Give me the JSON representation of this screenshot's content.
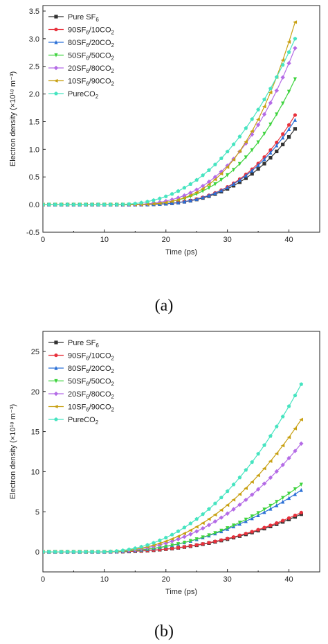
{
  "chart_data": [
    {
      "type": "line",
      "panel_label": "(a)",
      "xlabel": "Time (ps)",
      "ylabel": "Electron density (×10¹⁸ m⁻³)",
      "xlim": [
        0,
        45
      ],
      "ylim": [
        -0.5,
        3.6
      ],
      "xticks": [
        0,
        10,
        20,
        30,
        40
      ],
      "yticks": [
        -0.5,
        0.0,
        0.5,
        1.0,
        1.5,
        2.0,
        2.5,
        3.0,
        3.5
      ],
      "ytick_labels": [
        "-0.5",
        "0.0",
        "0.5",
        "1.0",
        "1.5",
        "2.0",
        "2.5",
        "3.0",
        "3.5"
      ],
      "xtick_labels": [
        "0",
        "10",
        "20",
        "30",
        "40"
      ],
      "legend_position": "top-left",
      "grid": false,
      "x": [
        0,
        1,
        2,
        3,
        4,
        5,
        6,
        7,
        8,
        9,
        10,
        11,
        12,
        13,
        14,
        15,
        16,
        17,
        18,
        19,
        20,
        21,
        22,
        23,
        24,
        25,
        26,
        27,
        28,
        29,
        30,
        31,
        32,
        33,
        34,
        35,
        36,
        37,
        38,
        39,
        40,
        41
      ],
      "series": [
        {
          "name": "Pure SF₆",
          "color": "#333333",
          "marker": "square",
          "end": 1.37,
          "start": 14,
          "p": 3.0
        },
        {
          "name": "90SF₆/10CO₂",
          "color": "#e8313c",
          "marker": "circle",
          "end": 1.62,
          "start": 14,
          "p": 3.1
        },
        {
          "name": "80SF₆/20CO₂",
          "color": "#2a6fd6",
          "marker": "triangle",
          "end": 1.53,
          "start": 14,
          "p": 3.05
        },
        {
          "name": "50SF₆/50CO₂",
          "color": "#3ed33e",
          "marker": "triangle-down",
          "end": 2.27,
          "start": 13,
          "p": 2.9
        },
        {
          "name": "20SF₆/80CO₂",
          "color": "#b46be6",
          "marker": "diamond",
          "end": 2.83,
          "start": 12.5,
          "p": 2.85
        },
        {
          "name": "10SF₆/90CO₂",
          "color": "#c8a012",
          "marker": "triangle-left",
          "end": 3.3,
          "start": 13.5,
          "p": 3.1
        },
        {
          "name": "PureCO₂",
          "color": "#46e4c0",
          "marker": "pentagon",
          "end": 3.0,
          "start": 11,
          "p": 2.5
        }
      ]
    },
    {
      "type": "line",
      "panel_label": "(b)",
      "xlabel": "Time (ps)",
      "ylabel": "Electron density (×10¹⁸ m⁻³)",
      "xlim": [
        0,
        45
      ],
      "ylim": [
        -2.5,
        27.5
      ],
      "xticks": [
        0,
        10,
        20,
        30,
        40
      ],
      "yticks": [
        0,
        5,
        10,
        15,
        20,
        25
      ],
      "ytick_labels": [
        "0",
        "5",
        "10",
        "15",
        "20",
        "25"
      ],
      "xtick_labels": [
        "0",
        "10",
        "20",
        "30",
        "40"
      ],
      "legend_position": "top-left",
      "grid": false,
      "x": [
        0,
        1,
        2,
        3,
        4,
        5,
        6,
        7,
        8,
        9,
        10,
        11,
        12,
        13,
        14,
        15,
        16,
        17,
        18,
        19,
        20,
        21,
        22,
        23,
        24,
        25,
        26,
        27,
        28,
        29,
        30,
        31,
        32,
        33,
        34,
        35,
        36,
        37,
        38,
        39,
        40,
        41,
        42
      ],
      "series": [
        {
          "name": "Pure SF₆",
          "color": "#333333",
          "marker": "square",
          "end": 4.7,
          "start": 9,
          "p": 2.4
        },
        {
          "name": "90SF₆/10CO₂",
          "color": "#e8313c",
          "marker": "circle",
          "end": 4.9,
          "start": 9,
          "p": 2.4
        },
        {
          "name": "80SF₆/20CO₂",
          "color": "#2a6fd6",
          "marker": "triangle",
          "end": 7.7,
          "start": 9,
          "p": 2.2
        },
        {
          "name": "50SF₆/50CO₂",
          "color": "#3ed33e",
          "marker": "triangle-down",
          "end": 8.4,
          "start": 9,
          "p": 2.3
        },
        {
          "name": "20SF₆/80CO₂",
          "color": "#b46be6",
          "marker": "diamond",
          "end": 13.5,
          "start": 9,
          "p": 2.3
        },
        {
          "name": "10SF₆/90CO₂",
          "color": "#c8a012",
          "marker": "triangle-left",
          "end": 16.5,
          "start": 9,
          "p": 2.3
        },
        {
          "name": "PureCO₂",
          "color": "#46e4c0",
          "marker": "pentagon",
          "end": 20.9,
          "start": 9,
          "p": 2.25
        }
      ]
    }
  ],
  "captions": {
    "a": "(a)",
    "b": "(b)"
  }
}
